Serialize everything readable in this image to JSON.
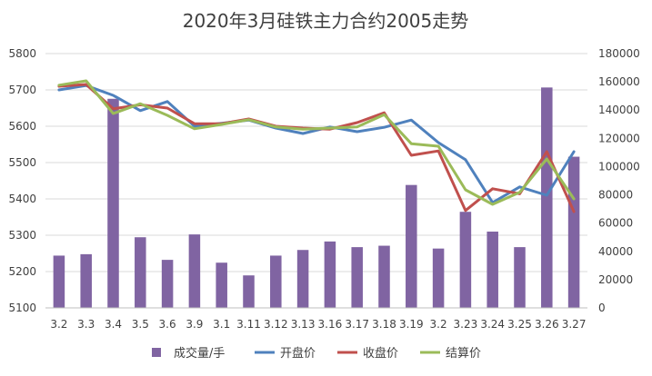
{
  "chart_data": {
    "type": "bar+line",
    "title": "2020年3月硅铁主力合约2005走势",
    "categories": [
      "3.2",
      "3.3",
      "3.4",
      "3.5",
      "3.6",
      "3.9",
      "3.1",
      "3.11",
      "3.12",
      "3.13",
      "3.16",
      "3.17",
      "3.18",
      "3.19",
      "3.2",
      "3.23",
      "3.24",
      "3.25",
      "3.26",
      "3.27"
    ],
    "y_left": {
      "min": 5100,
      "max": 5800,
      "ticks": [
        5100,
        5200,
        5300,
        5400,
        5500,
        5600,
        5700,
        5800
      ]
    },
    "y_right": {
      "min": 0,
      "max": 180000,
      "ticks": [
        0,
        20000,
        40000,
        60000,
        80000,
        100000,
        120000,
        140000,
        160000,
        180000
      ]
    },
    "grid": true,
    "legend_position": "bottom",
    "series": [
      {
        "name": "成交量/手",
        "type": "bar",
        "axis": "right",
        "color": "#8064A2",
        "values": [
          37000,
          38000,
          148000,
          50000,
          34000,
          52000,
          32000,
          23000,
          37000,
          41000,
          47000,
          43000,
          44000,
          87000,
          42000,
          68000,
          54000,
          43000,
          156000,
          107000
        ]
      },
      {
        "name": "开盘价",
        "type": "line",
        "axis": "left",
        "color": "#4F81BD",
        "values": [
          5700,
          5712,
          5685,
          5643,
          5668,
          5600,
          5608,
          5617,
          5595,
          5580,
          5598,
          5585,
          5597,
          5617,
          5555,
          5508,
          5390,
          5433,
          5410,
          5530
        ]
      },
      {
        "name": "收盘价",
        "type": "line",
        "axis": "left",
        "color": "#C0504D",
        "values": [
          5710,
          5715,
          5648,
          5659,
          5650,
          5607,
          5607,
          5620,
          5600,
          5595,
          5592,
          5610,
          5637,
          5520,
          5532,
          5368,
          5428,
          5414,
          5530,
          5365
        ]
      },
      {
        "name": "结算价",
        "type": "line",
        "axis": "left",
        "color": "#9BBB59",
        "values": [
          5713,
          5725,
          5635,
          5662,
          5630,
          5593,
          5605,
          5618,
          5598,
          5592,
          5595,
          5598,
          5632,
          5552,
          5545,
          5425,
          5385,
          5418,
          5510,
          5400
        ]
      }
    ]
  }
}
